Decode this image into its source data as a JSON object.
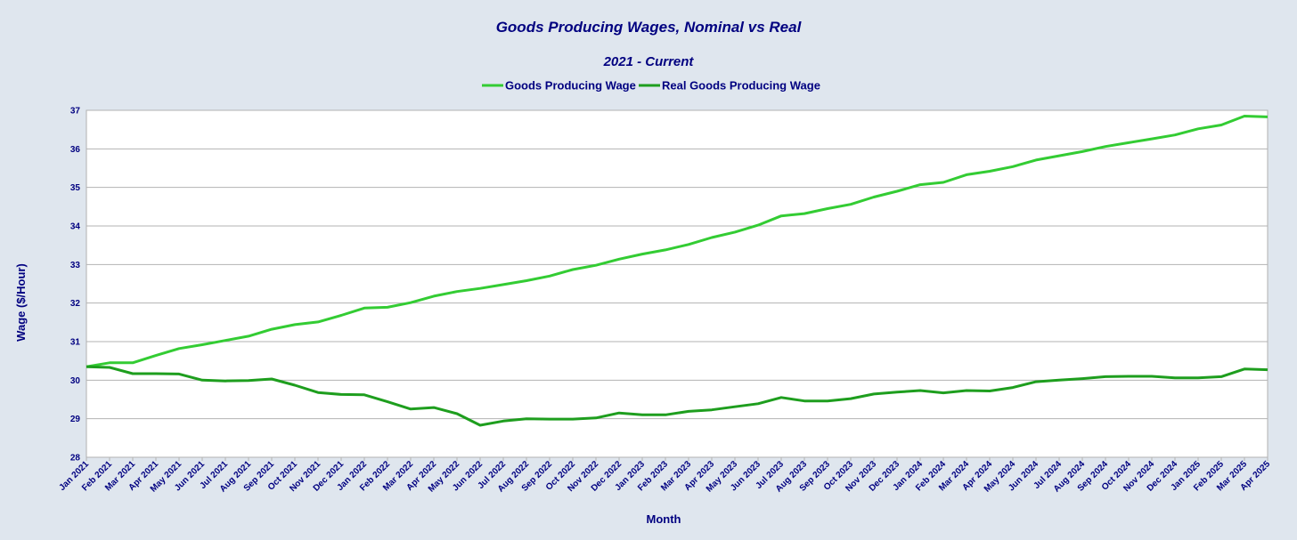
{
  "chart_data": {
    "type": "line",
    "title": "Goods Producing Wages, Nominal vs Real",
    "subtitle": "2021 - Current",
    "xlabel": "Month",
    "ylabel": "Wage ($/Hour)",
    "ylim": [
      28,
      37
    ],
    "yticks": [
      "28",
      "29",
      "30",
      "31",
      "32",
      "33",
      "34",
      "35",
      "36",
      "37"
    ],
    "grid": true,
    "legend_position": "top-center",
    "categories": [
      "Jan 2021",
      "Feb 2021",
      "Mar 2021",
      "Apr 2021",
      "May 2021",
      "Jun 2021",
      "Jul 2021",
      "Aug 2021",
      "Sep 2021",
      "Oct 2021",
      "Nov 2021",
      "Dec 2021",
      "Jan 2022",
      "Feb 2022",
      "Mar 2022",
      "Apr 2022",
      "May 2022",
      "Jun 2022",
      "Jul 2022",
      "Aug 2022",
      "Sep 2022",
      "Oct 2022",
      "Nov 2022",
      "Dec 2022",
      "Jan 2023",
      "Feb 2023",
      "Mar 2023",
      "Apr 2023",
      "May 2023",
      "Jun 2023",
      "Jul 2023",
      "Aug 2023",
      "Sep 2023",
      "Oct 2023",
      "Nov 2023",
      "Dec 2023",
      "Jan 2024",
      "Feb 2024",
      "Mar 2024",
      "Apr 2024",
      "May 2024",
      "Jun 2024",
      "Jul 2024",
      "Aug 2024",
      "Sep 2024",
      "Oct 2024",
      "Nov 2024",
      "Dec 2024",
      "Jan 2025",
      "Feb 2025",
      "Mar 2025",
      "Apr 2025"
    ],
    "series": [
      {
        "name": "Goods Producing Wage",
        "color": "#33cc33",
        "values": [
          30.35,
          30.45,
          30.45,
          30.64,
          30.82,
          30.92,
          31.03,
          31.14,
          31.32,
          31.44,
          31.51,
          31.68,
          31.87,
          31.89,
          32.01,
          32.18,
          32.3,
          32.38,
          32.48,
          32.58,
          32.7,
          32.87,
          32.98,
          33.14,
          33.27,
          33.38,
          33.52,
          33.7,
          33.84,
          34.02,
          34.26,
          34.32,
          34.45,
          34.56,
          34.75,
          34.9,
          35.07,
          35.13,
          35.33,
          35.42,
          35.54,
          35.71,
          35.82,
          35.93,
          36.06,
          36.16,
          36.26,
          36.36,
          36.52,
          36.62,
          36.85,
          36.83
        ]
      },
      {
        "name": "Real Goods Producing Wage",
        "color": "#1e9e1e",
        "values": [
          30.35,
          30.33,
          30.17,
          30.17,
          30.16,
          30.0,
          29.98,
          29.99,
          30.03,
          29.87,
          29.68,
          29.63,
          29.62,
          29.44,
          29.25,
          29.29,
          29.13,
          28.83,
          28.94,
          29.0,
          28.99,
          28.99,
          29.02,
          29.15,
          29.1,
          29.1,
          29.19,
          29.23,
          29.31,
          29.39,
          29.55,
          29.46,
          29.46,
          29.52,
          29.64,
          29.69,
          29.73,
          29.67,
          29.73,
          29.72,
          29.81,
          29.96,
          30.0,
          30.04,
          30.09,
          30.1,
          30.1,
          30.06,
          30.06,
          30.09,
          30.29,
          30.27
        ]
      }
    ]
  }
}
